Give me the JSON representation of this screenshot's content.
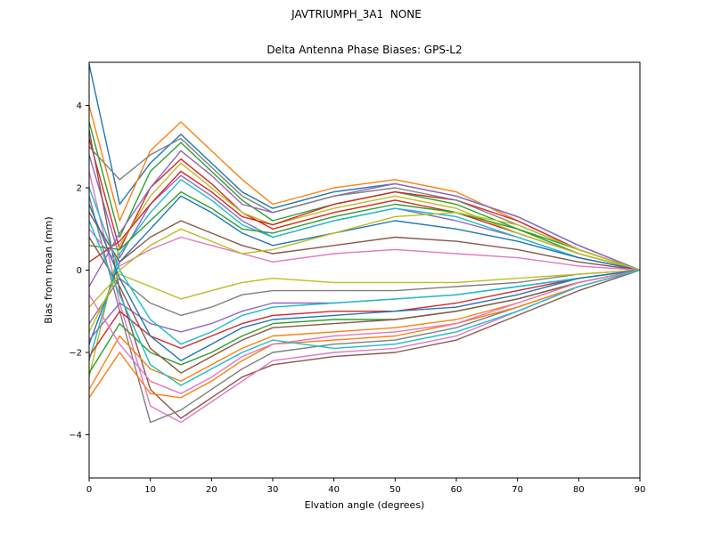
{
  "chart_data": {
    "type": "line",
    "suptitle": "JAVTRIUMPH_3A1  NONE",
    "title": "Delta Antenna Phase Biases: GPS-L2",
    "xlabel": "Elvation angle (degrees)",
    "ylabel": "Bias from mean (mm)",
    "xlim": [
      0,
      90
    ],
    "ylim": [
      -5.05,
      5.05
    ],
    "xticks": [
      0,
      10,
      20,
      30,
      40,
      50,
      60,
      70,
      80,
      90
    ],
    "xtick_labels": [
      "0",
      "10",
      "20",
      "30",
      "40",
      "50",
      "60",
      "70",
      "80",
      "90"
    ],
    "yticks": [
      -4,
      -2,
      0,
      2,
      4
    ],
    "ytick_labels": [
      "−4",
      "−2",
      "0",
      "2",
      "4"
    ],
    "grid": false,
    "legend": "none",
    "color_cycle": [
      "#1f77b4",
      "#ff7f0e",
      "#2ca02c",
      "#d62728",
      "#9467bd",
      "#8c564b",
      "#e377c2",
      "#7f7f7f",
      "#bcbd22",
      "#17becf"
    ],
    "x": [
      0,
      5,
      10,
      15,
      20,
      25,
      30,
      40,
      50,
      60,
      70,
      80,
      90
    ],
    "series": [
      {
        "values": [
          5.0,
          1.6,
          2.6,
          3.3,
          2.6,
          1.9,
          1.5,
          1.9,
          2.1,
          1.8,
          1.3,
          0.6,
          0
        ]
      },
      {
        "values": [
          4.0,
          1.2,
          2.9,
          3.6,
          2.9,
          2.2,
          1.6,
          2.0,
          2.2,
          1.9,
          1.2,
          0.5,
          0
        ]
      },
      {
        "values": [
          3.6,
          0.8,
          2.4,
          3.1,
          2.4,
          1.7,
          1.2,
          1.6,
          1.9,
          1.6,
          1.0,
          0.4,
          0
        ]
      },
      {
        "values": [
          3.2,
          0.5,
          2.0,
          2.7,
          2.1,
          1.4,
          1.0,
          1.4,
          1.7,
          1.4,
          0.9,
          0.4,
          0
        ]
      },
      {
        "values": [
          2.8,
          0.3,
          1.6,
          2.3,
          1.8,
          1.2,
          0.8,
          1.2,
          1.5,
          1.2,
          0.8,
          0.3,
          0
        ]
      },
      {
        "values": [
          3.4,
          -0.5,
          -2.9,
          -3.6,
          -3.1,
          -2.6,
          -2.3,
          -2.1,
          -2.0,
          -1.7,
          -1.1,
          -0.5,
          0
        ]
      },
      {
        "values": [
          2.4,
          -0.8,
          -3.3,
          -3.7,
          -3.2,
          -2.7,
          -2.2,
          -2.0,
          -1.9,
          -1.6,
          -1.0,
          -0.4,
          0
        ]
      },
      {
        "values": [
          1.8,
          -1.0,
          -3.7,
          -3.4,
          -2.9,
          -2.4,
          -2.0,
          -1.8,
          -1.7,
          -1.4,
          -0.9,
          -0.4,
          0
        ]
      },
      {
        "values": [
          -2.6,
          0.6,
          1.8,
          2.6,
          2.0,
          1.4,
          1.1,
          1.5,
          1.8,
          1.5,
          0.9,
          0.4,
          0
        ]
      },
      {
        "values": [
          -2.2,
          0.4,
          1.4,
          2.2,
          1.7,
          1.1,
          0.8,
          1.2,
          1.5,
          1.3,
          0.8,
          0.3,
          0
        ]
      },
      {
        "values": [
          -1.8,
          0.2,
          1.0,
          1.8,
          1.4,
          0.9,
          0.6,
          0.9,
          1.2,
          1.0,
          0.7,
          0.3,
          0
        ]
      },
      {
        "values": [
          -2.9,
          -1.6,
          -2.4,
          -2.7,
          -2.3,
          -1.9,
          -1.6,
          -1.5,
          -1.4,
          -1.2,
          -0.8,
          -0.3,
          0
        ]
      },
      {
        "values": [
          -2.5,
          -1.3,
          -2.0,
          -2.3,
          -2.0,
          -1.6,
          -1.3,
          -1.2,
          -1.2,
          -1.0,
          -0.7,
          -0.3,
          0
        ]
      },
      {
        "values": [
          -2.1,
          -1.0,
          -1.6,
          -1.9,
          -1.6,
          -1.3,
          -1.1,
          -1.0,
          -1.0,
          -0.8,
          -0.5,
          -0.2,
          0
        ]
      },
      {
        "values": [
          -1.7,
          -0.8,
          -1.3,
          -1.5,
          -1.3,
          -1.0,
          -0.8,
          -0.8,
          -0.7,
          -0.6,
          -0.4,
          -0.2,
          0
        ]
      },
      {
        "values": [
          1.4,
          0.2,
          0.8,
          1.2,
          0.9,
          0.6,
          0.4,
          0.6,
          0.8,
          0.7,
          0.5,
          0.2,
          0
        ]
      },
      {
        "values": [
          1.0,
          0.1,
          0.5,
          0.8,
          0.6,
          0.4,
          0.2,
          0.4,
          0.5,
          0.4,
          0.3,
          0.1,
          0
        ]
      },
      {
        "values": [
          -1.3,
          -0.2,
          -0.8,
          -1.1,
          -0.9,
          -0.6,
          -0.5,
          -0.5,
          -0.5,
          -0.4,
          -0.3,
          -0.1,
          0
        ]
      },
      {
        "values": [
          -0.9,
          -0.1,
          -0.4,
          -0.7,
          -0.5,
          -0.3,
          -0.2,
          -0.3,
          -0.3,
          -0.3,
          -0.2,
          -0.1,
          0
        ]
      },
      {
        "values": [
          2.0,
          0.0,
          -1.2,
          -1.8,
          -1.5,
          -1.1,
          -0.9,
          -0.8,
          -0.7,
          -0.6,
          -0.4,
          -0.2,
          0
        ]
      },
      {
        "values": [
          1.6,
          -0.2,
          -1.6,
          -2.2,
          -1.8,
          -1.4,
          -1.2,
          -1.1,
          -1.0,
          -0.9,
          -0.6,
          -0.2,
          0
        ]
      },
      {
        "values": [
          -3.1,
          -2.0,
          -3.0,
          -3.1,
          -2.7,
          -2.2,
          -1.8,
          -1.7,
          -1.6,
          -1.3,
          -0.9,
          -0.4,
          0
        ]
      },
      {
        "values": [
          0.6,
          0.5,
          1.2,
          1.9,
          1.5,
          1.0,
          0.9,
          1.3,
          1.6,
          1.4,
          1.0,
          0.5,
          0
        ]
      },
      {
        "values": [
          0.2,
          0.7,
          1.6,
          2.4,
          1.9,
          1.3,
          1.1,
          1.6,
          1.9,
          1.7,
          1.2,
          0.5,
          0
        ]
      },
      {
        "values": [
          -0.4,
          0.9,
          2.0,
          2.9,
          2.3,
          1.6,
          1.4,
          1.8,
          2.1,
          1.8,
          1.3,
          0.6,
          0
        ]
      },
      {
        "values": [
          0.8,
          -0.4,
          -1.9,
          -2.5,
          -2.1,
          -1.7,
          -1.4,
          -1.3,
          -1.2,
          -1.0,
          -0.7,
          -0.3,
          0
        ]
      },
      {
        "values": [
          -0.6,
          -1.8,
          -2.7,
          -3.0,
          -2.6,
          -2.1,
          -1.8,
          -1.6,
          -1.5,
          -1.3,
          -0.8,
          -0.3,
          0
        ]
      },
      {
        "values": [
          3.0,
          2.2,
          2.8,
          3.2,
          2.5,
          1.8,
          1.4,
          1.8,
          2.0,
          1.7,
          1.1,
          0.5,
          0
        ]
      },
      {
        "values": [
          -1.5,
          0.0,
          0.6,
          1.0,
          0.7,
          0.4,
          0.5,
          0.9,
          1.3,
          1.4,
          1.1,
          0.5,
          0
        ]
      },
      {
        "values": [
          1.2,
          -0.6,
          -2.3,
          -2.8,
          -2.4,
          -2.0,
          -1.7,
          -1.9,
          -1.8,
          -1.5,
          -1.0,
          -0.4,
          0
        ]
      }
    ]
  }
}
